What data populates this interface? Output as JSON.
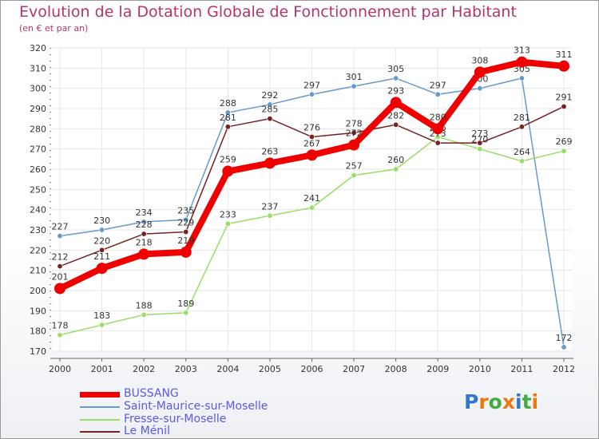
{
  "header": {
    "title": "Evolution de la Dotation Globale de Fonctionnement par Habitant",
    "subtitle": "(en € et par an)"
  },
  "chart_data": {
    "type": "line",
    "title": "Evolution de la Dotation Globale de Fonctionnement par Habitant",
    "subtitle": "(en € et par an)",
    "xlabel": "",
    "ylabel": "",
    "x": [
      "2000",
      "2001",
      "2002",
      "2003",
      "2004",
      "2005",
      "2006",
      "2007",
      "2008",
      "2009",
      "2010",
      "2011",
      "2012"
    ],
    "ylim": [
      170,
      320
    ],
    "yticks": [
      170,
      180,
      190,
      200,
      210,
      220,
      230,
      240,
      250,
      260,
      270,
      280,
      290,
      300,
      310,
      320
    ],
    "grid": true,
    "legend_position": "bottom-left",
    "series": [
      {
        "name": "Saint-Maurice-sur-Moselle",
        "color": "#6699cc",
        "values": [
          227,
          230,
          234,
          235,
          288,
          292,
          297,
          301,
          305,
          297,
          300,
          305,
          172
        ],
        "labels": [
          "227",
          "230",
          "234",
          "235",
          "288",
          "292",
          "297",
          "301",
          "305",
          "297",
          "300",
          "305",
          "172"
        ]
      },
      {
        "name": "Fresse-sur-Moselle",
        "color": "#99dd66",
        "values": [
          178,
          183,
          188,
          189,
          233,
          237,
          241,
          257,
          260,
          276,
          270,
          264,
          269
        ],
        "labels": [
          "178",
          "183",
          "188",
          "189",
          "233",
          "237",
          "241",
          "257",
          "260",
          "276",
          "270",
          "264",
          "269"
        ]
      },
      {
        "name": "Le Ménil",
        "color": "#772222",
        "values": [
          212,
          220,
          228,
          229,
          281,
          285,
          276,
          278,
          282,
          273,
          273,
          281,
          291
        ],
        "labels": [
          "212",
          "220",
          "228",
          "229",
          "281",
          "285",
          "276",
          "278",
          "282",
          "273",
          "273",
          "281",
          "291"
        ]
      },
      {
        "name": "BUSSANG",
        "color": "#ee0000",
        "values": [
          201,
          211,
          218,
          219,
          259,
          263,
          267,
          272,
          293,
          280,
          308,
          313,
          311
        ],
        "labels": [
          "201",
          "211",
          "218",
          "219",
          "259",
          "263",
          "267",
          "272",
          "293",
          "280",
          "308",
          "313",
          "311"
        ]
      }
    ]
  },
  "legend": {
    "items": [
      {
        "name": "BUSSANG",
        "color": "#ee0000"
      },
      {
        "name": "Saint-Maurice-sur-Moselle",
        "color": "#6699cc"
      },
      {
        "name": "Fresse-sur-Moselle",
        "color": "#99dd66"
      },
      {
        "name": "Le Ménil",
        "color": "#772222"
      }
    ]
  },
  "logo": {
    "letters": [
      "P",
      "r",
      "o",
      "x",
      "i",
      "t",
      "i"
    ],
    "colors": [
      "#3377cc",
      "#ee7711",
      "#44aa44",
      "#ee7711",
      "#3377cc",
      "#44aa44",
      "#ee7711"
    ]
  }
}
